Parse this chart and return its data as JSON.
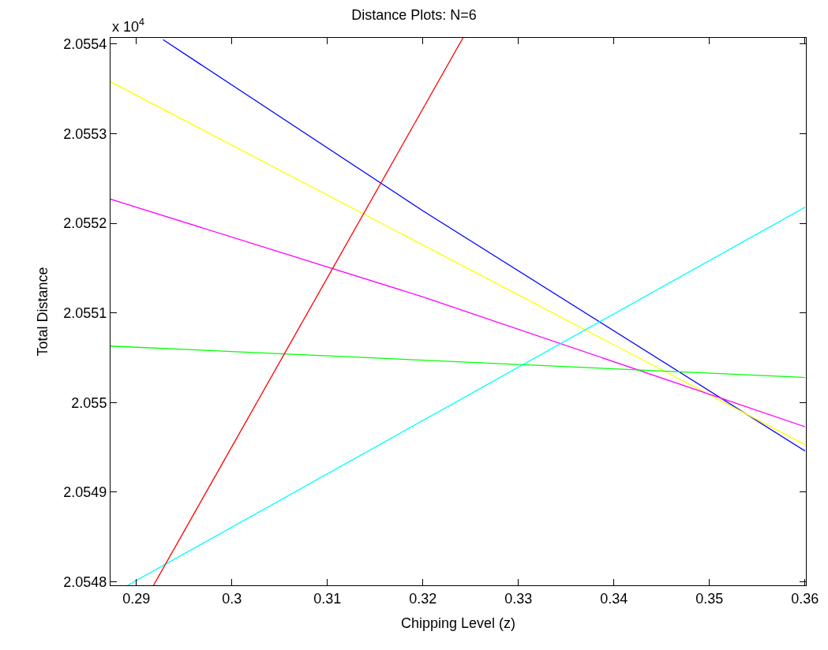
{
  "chart_data": {
    "type": "line",
    "title": "Distance Plots: N=6",
    "xlabel": "Chipping Level (z)",
    "ylabel": "Total Distance",
    "annotations": [
      "x 10$^{4}$"
    ],
    "xlim": [
      0.2873,
      0.3601
    ],
    "ylim": [
      2.054796,
      2.055407
    ],
    "xticks": [
      0.29,
      0.3,
      0.31,
      0.32,
      0.33,
      0.34,
      0.35,
      0.36
    ],
    "yticks": [
      2.0548,
      2.0549,
      2.055,
      2.0551,
      2.0552,
      2.0553,
      2.0554
    ],
    "grid": false,
    "marker": "none",
    "line_style": "solid",
    "series": [
      {
        "color": "#0000ff",
        "x": [
          0.2928,
          0.32,
          0.36
        ],
        "values": [
          2.055405,
          2.055214,
          2.054946
        ]
      },
      {
        "color": "#ffff00",
        "x": [
          0.2873,
          0.36
        ],
        "values": [
          2.055358,
          2.054953
        ]
      },
      {
        "color": "#ff00ff",
        "x": [
          0.2873,
          0.32,
          0.36
        ],
        "values": [
          2.055227,
          2.055118,
          2.054973
        ]
      },
      {
        "color": "#00ff00",
        "x": [
          0.2873,
          0.36
        ],
        "values": [
          2.055063,
          2.055028
        ]
      },
      {
        "color": "#00ffff",
        "x": [
          0.2891,
          0.36
        ],
        "values": [
          2.054796,
          2.055218
        ]
      },
      {
        "color": "#ff0000",
        "x": [
          0.2918,
          0.3242
        ],
        "values": [
          2.054796,
          2.055407
        ]
      }
    ]
  }
}
